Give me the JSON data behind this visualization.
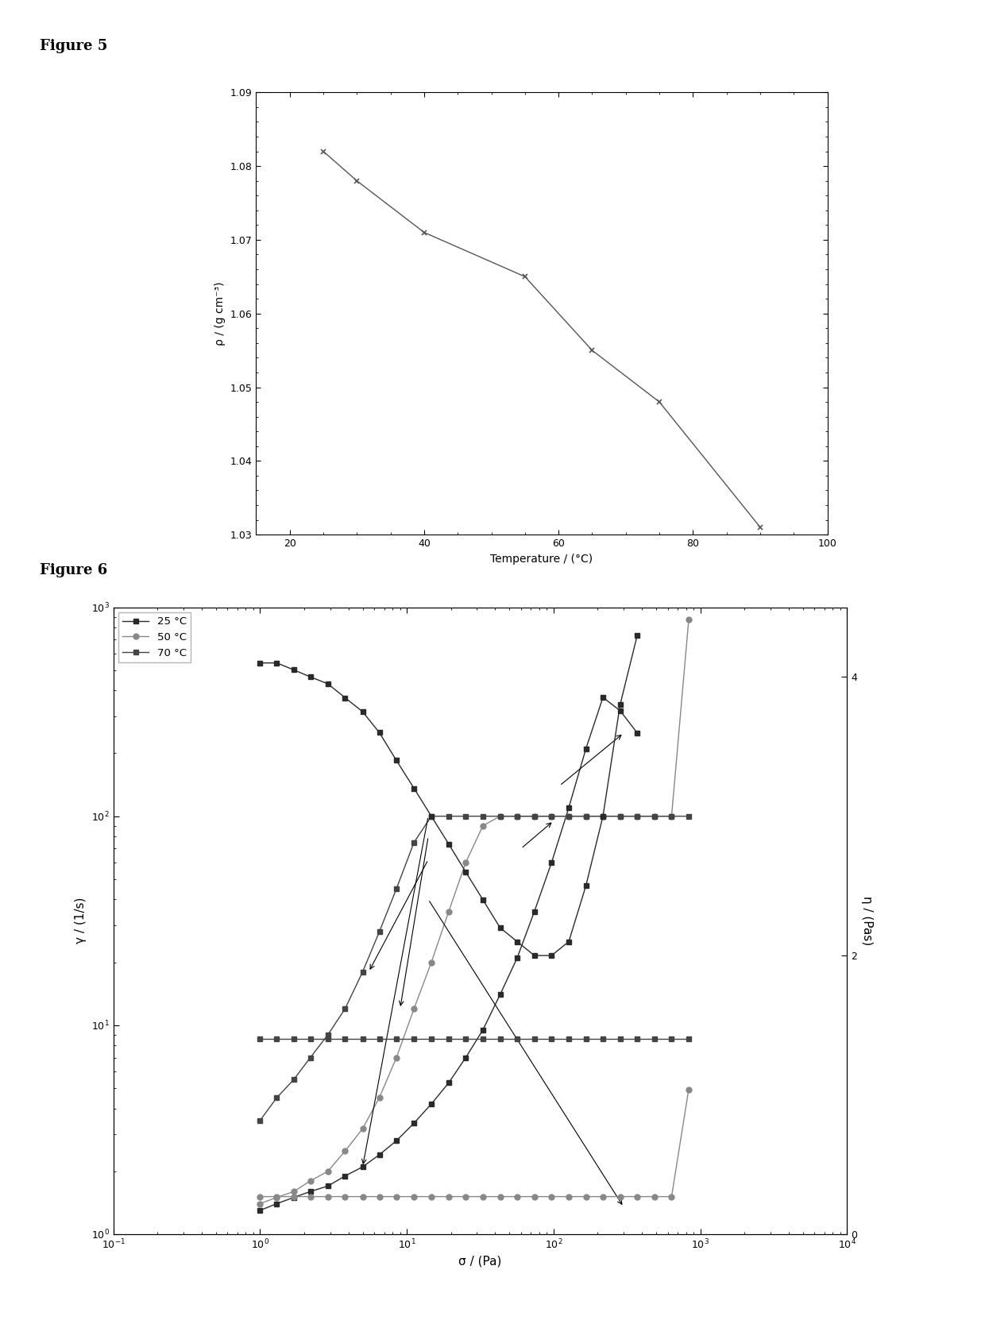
{
  "fig5": {
    "xlabel": "Temperature / (°C)",
    "ylabel": "ρ / (g cm⁻³)",
    "xlim": [
      15,
      100
    ],
    "ylim": [
      1.03,
      1.09
    ],
    "xticks": [
      20,
      40,
      60,
      80,
      100
    ],
    "yticks": [
      1.03,
      1.04,
      1.05,
      1.06,
      1.07,
      1.08,
      1.09
    ],
    "temp": [
      25,
      30,
      40,
      55,
      65,
      75,
      90
    ],
    "density": [
      1.082,
      1.078,
      1.071,
      1.065,
      1.055,
      1.048,
      1.031
    ],
    "line_color": "#555555",
    "marker_color": "#555555"
  },
  "fig6": {
    "xlabel": "σ / (Pa)",
    "ylabel_left": "γ / (1/s)",
    "ylabel_right": "η / (Pas)",
    "xlim_left": 0.1,
    "xlim_right": 10000,
    "ylim_left": [
      1,
      1000
    ],
    "ylim_right": [
      0,
      4.5
    ],
    "yticks_right": [
      0,
      2,
      4
    ],
    "shear_rate_25": {
      "sigma": [
        1.0,
        1.3,
        1.7,
        2.2,
        2.9,
        3.8,
        5.0,
        6.5,
        8.5,
        11.2,
        14.7,
        19.3,
        25.2,
        33.0,
        43.2,
        56.5,
        74.0,
        96.9,
        127.0,
        166.0,
        217.0,
        284.0,
        372.0
      ],
      "gamma": [
        1.3,
        1.4,
        1.5,
        1.6,
        1.7,
        1.9,
        2.1,
        2.4,
        2.8,
        3.4,
        4.2,
        5.3,
        7.0,
        9.5,
        14.0,
        21.0,
        35.0,
        60.0,
        110.0,
        210.0,
        370.0,
        320.0,
        250.0
      ]
    },
    "shear_rate_50": {
      "sigma": [
        1.0,
        1.3,
        1.7,
        2.2,
        2.9,
        3.8,
        5.0,
        6.5,
        8.5,
        11.2,
        14.7,
        19.3,
        25.2,
        33.0,
        43.2,
        56.5,
        74.0,
        96.9,
        127.0,
        166.0,
        217.0,
        284.0,
        372.0,
        487.0,
        637.0,
        833.0
      ],
      "gamma": [
        1.4,
        1.5,
        1.6,
        1.8,
        2.0,
        2.5,
        3.2,
        4.5,
        7.0,
        12.0,
        20.0,
        35.0,
        60.0,
        90.0,
        100.0,
        100.0,
        100.0,
        100.0,
        100.0,
        100.0,
        100.0,
        100.0,
        100.0,
        100.0,
        100.0,
        870.0
      ]
    },
    "shear_rate_70": {
      "sigma": [
        1.0,
        1.3,
        1.7,
        2.2,
        2.9,
        3.8,
        5.0,
        6.5,
        8.5,
        11.2,
        14.7,
        19.3,
        25.2,
        33.0,
        43.2,
        56.5,
        74.0,
        96.9,
        127.0,
        166.0,
        217.0,
        284.0,
        372.0,
        487.0,
        637.0,
        833.0
      ],
      "gamma": [
        3.5,
        4.5,
        5.5,
        7.0,
        9.0,
        12.0,
        18.0,
        28.0,
        45.0,
        75.0,
        100.0,
        100.0,
        100.0,
        100.0,
        100.0,
        100.0,
        100.0,
        100.0,
        100.0,
        100.0,
        100.0,
        100.0,
        100.0,
        100.0,
        100.0,
        100.0
      ]
    },
    "visc_25_sigma": [
      1.0,
      1.3,
      1.7,
      2.2,
      2.9,
      3.8,
      5.0,
      6.5,
      8.5,
      11.2,
      14.7,
      19.3,
      25.2,
      33.0,
      43.2,
      56.5,
      74.0,
      96.9,
      127.0,
      166.0,
      217.0,
      284.0,
      372.0
    ],
    "visc_25_eta": [
      4.1,
      4.1,
      4.05,
      4.0,
      3.95,
      3.85,
      3.75,
      3.6,
      3.4,
      3.2,
      3.0,
      2.8,
      2.6,
      2.4,
      2.2,
      2.1,
      2.0,
      2.0,
      2.1,
      2.5,
      3.0,
      3.8,
      4.3
    ],
    "visc_50_sigma": [
      1.0,
      1.3,
      1.7,
      2.2,
      2.9,
      3.8,
      5.0,
      6.5,
      8.5,
      11.2,
      14.7,
      19.3,
      25.2,
      33.0,
      43.2,
      56.5,
      74.0,
      96.9,
      127.0,
      166.0,
      217.0,
      284.0,
      372.0,
      487.0,
      637.0,
      833.0
    ],
    "visc_50_eta": [
      0.27,
      0.27,
      0.27,
      0.27,
      0.27,
      0.27,
      0.27,
      0.27,
      0.27,
      0.27,
      0.27,
      0.27,
      0.27,
      0.27,
      0.27,
      0.27,
      0.27,
      0.27,
      0.27,
      0.27,
      0.27,
      0.27,
      0.27,
      0.27,
      0.27,
      1.04
    ],
    "visc_70_sigma": [
      1.0,
      1.3,
      1.7,
      2.2,
      2.9,
      3.8,
      5.0,
      6.5,
      8.5,
      11.2,
      14.7,
      19.3,
      25.2,
      33.0,
      43.2,
      56.5,
      74.0,
      96.9,
      127.0,
      166.0,
      217.0,
      284.0,
      372.0,
      487.0,
      637.0,
      833.0
    ],
    "visc_70_eta": [
      1.4,
      1.4,
      1.4,
      1.4,
      1.4,
      1.4,
      1.4,
      1.4,
      1.4,
      1.4,
      1.4,
      1.4,
      1.4,
      1.4,
      1.4,
      1.4,
      1.4,
      1.4,
      1.4,
      1.4,
      1.4,
      1.4,
      1.4,
      1.4,
      1.4,
      1.4
    ],
    "color_25": "#2a2a2a",
    "color_50": "#888888",
    "color_70": "#444444",
    "label_25": "25 °C",
    "label_50": "50 °C",
    "label_70": "70 °C"
  }
}
